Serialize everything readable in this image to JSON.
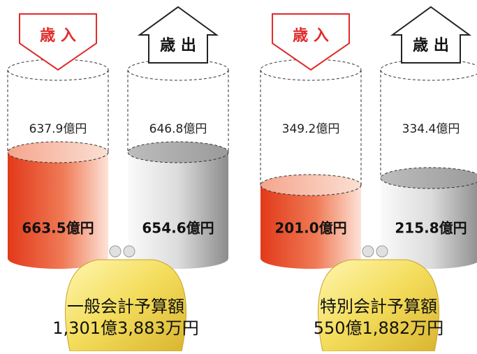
{
  "panels": [
    {
      "revenue_label": "歳 入",
      "expenditure_label": "歳 出",
      "revenue_previous": "637.9億円",
      "expenditure_previous": "646.8億円",
      "revenue_current": "663.5億円",
      "expenditure_current": "654.6億円",
      "title": "一般会計予算額",
      "total": "1,301億3,883万円"
    },
    {
      "revenue_label": "歳 入",
      "expenditure_label": "歳 出",
      "revenue_previous": "349.2億円",
      "expenditure_previous": "334.4億円",
      "revenue_current": "201.0億円",
      "expenditure_current": "215.8億円",
      "title": "特別会計予算額",
      "total": "550億1,882万円"
    }
  ]
}
